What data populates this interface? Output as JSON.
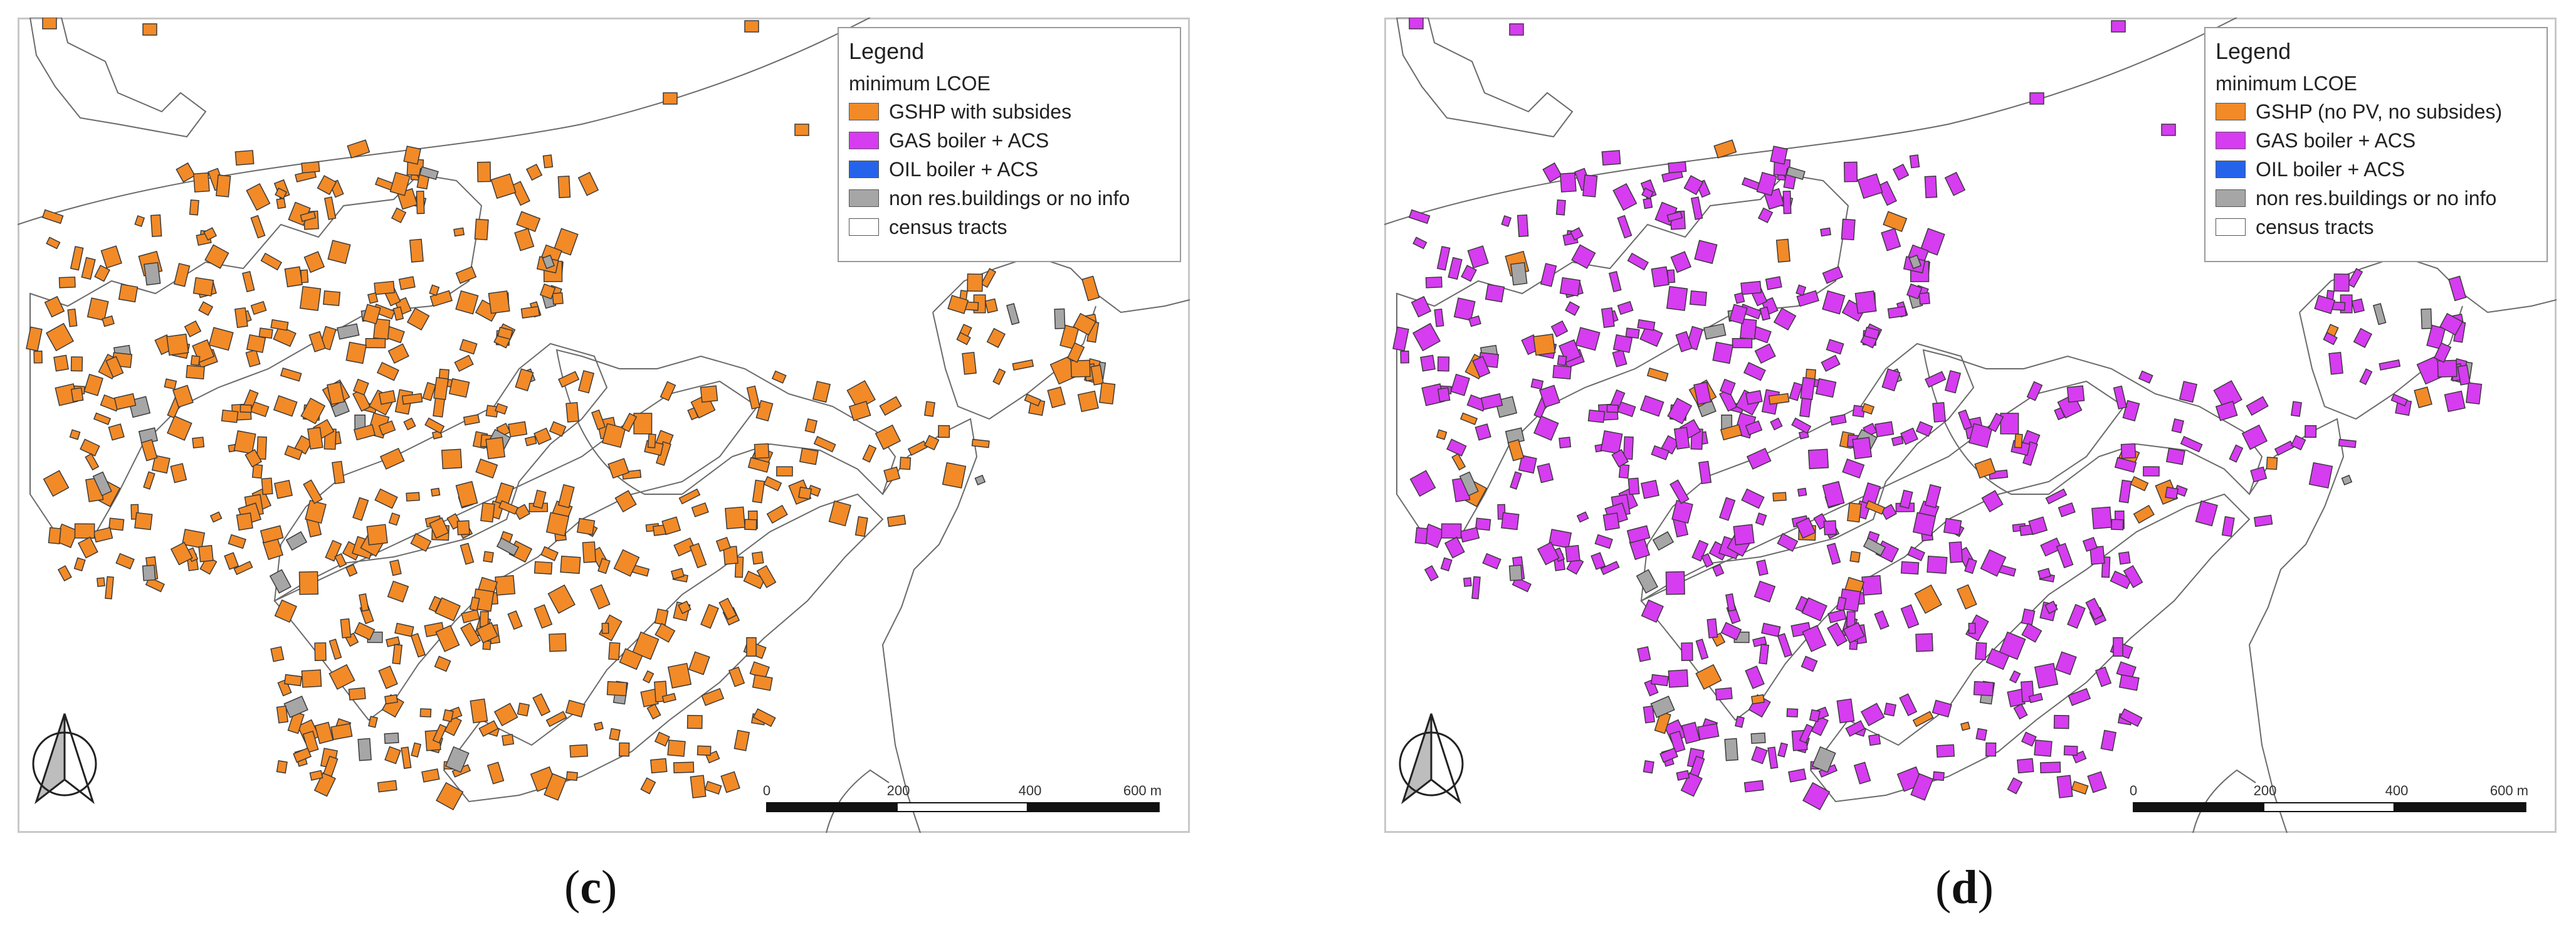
{
  "panels": [
    {
      "caption_letter": "c",
      "legend": {
        "title": "Legend",
        "subtitle": "minimum LCOE",
        "items": [
          {
            "label": "GSHP with subsides",
            "color": "#f28a27"
          },
          {
            "label": "GAS boiler + ACS",
            "color": "#d63cf0"
          },
          {
            "label": "OIL boiler + ACS",
            "color": "#2563eb"
          },
          {
            "label": "non res.buildings or no info",
            "color": "#a6a6a6"
          },
          {
            "label": "census tracts",
            "color": "#ffffff"
          }
        ]
      },
      "scale_bar": {
        "ticks": [
          "0",
          "200",
          "400",
          "600 m"
        ]
      },
      "dominant_fill": "#f28a27"
    },
    {
      "caption_letter": "d",
      "legend": {
        "title": "Legend",
        "subtitle": "minimum LCOE",
        "items": [
          {
            "label": "GSHP (no PV, no subsides)",
            "color": "#f28a27"
          },
          {
            "label": "GAS boiler + ACS",
            "color": "#d63cf0"
          },
          {
            "label": "OIL boiler + ACS",
            "color": "#2563eb"
          },
          {
            "label": "non res.buildings or no info",
            "color": "#a6a6a6"
          },
          {
            "label": "census tracts",
            "color": "#ffffff"
          }
        ]
      },
      "scale_bar": {
        "ticks": [
          "0",
          "200",
          "400",
          "600 m"
        ]
      },
      "dominant_fill": "#d63cf0"
    }
  ],
  "colors": {
    "gray_buildings": "#a6a6a6",
    "tract_line": "#6a6a6a",
    "orange": "#f28a27",
    "magenta": "#d63cf0"
  }
}
